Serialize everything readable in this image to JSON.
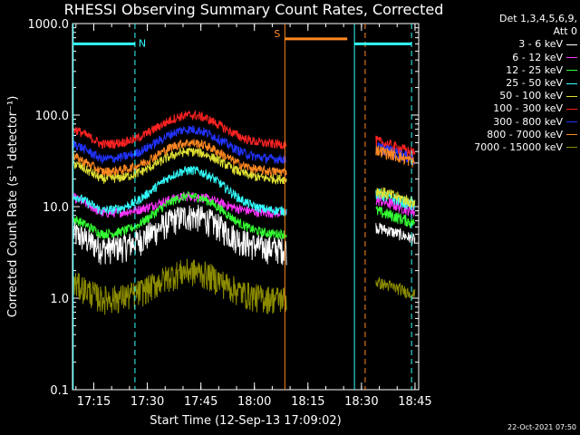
{
  "chart_data": {
    "type": "line",
    "title": "RHESSI Observing Summary Count Rates, Corrected",
    "xlabel": "Start Time (12-Sep-13 17:09:02)",
    "ylabel": "Corrected Count Rate (s⁻¹ detector⁻¹)",
    "yscale": "log",
    "ylim": [
      0.1,
      1000.0
    ],
    "xlim_minutes": [
      0,
      97
    ],
    "x_tick_labels": [
      "17:15",
      "17:30",
      "17:45",
      "18:00",
      "18:15",
      "18:30",
      "18:45"
    ],
    "y_tick_labels": [
      "0.1",
      "1.0",
      "10.0",
      "100.0",
      "1000.0"
    ],
    "legend_header": [
      "Det 1,3,4,5,6,9,",
      "Att 0"
    ],
    "series": [
      {
        "name": "3 - 6 keV",
        "color": "#ffffff",
        "peak": 8,
        "base": 3.5,
        "late": 6
      },
      {
        "name": "6 - 12 keV",
        "color": "#ff33ff",
        "peak": 13,
        "base": 8.5,
        "late": 12
      },
      {
        "name": "12 - 25 keV",
        "color": "#33ff33",
        "peak": 13,
        "base": 5.0,
        "late": 9
      },
      {
        "name": "25 - 50 keV",
        "color": "#33ffff",
        "peak": 25,
        "base": 9.0,
        "late": 14
      },
      {
        "name": "50 - 100 keV",
        "color": "#e0e033",
        "peak": 40,
        "base": 20,
        "late": 15
      },
      {
        "name": "100 - 300 keV",
        "color": "#ff2222",
        "peak": 100,
        "base": 48,
        "late": 52
      },
      {
        "name": "300 - 800 keV",
        "color": "#2233ff",
        "peak": 70,
        "base": 33,
        "late": 45
      },
      {
        "name": "800 - 7000 keV",
        "color": "#ff8822",
        "peak": 50,
        "base": 24,
        "late": 42
      },
      {
        "name": "7000 - 15000 keV",
        "color": "#8b8b00",
        "peak": 2,
        "base": 1,
        "late": 1.5
      }
    ],
    "annotations": [
      {
        "label": "N",
        "color": "#33ffff",
        "x_start": 0,
        "x_end": 17.5,
        "y": 600
      },
      {
        "label": "S",
        "color": "#ff8822",
        "x_start": 59.5,
        "x_end": 77,
        "y": 680
      },
      {
        "label": "",
        "color": "#33ffff",
        "x_start": 79,
        "x_end": 95,
        "y": 600
      }
    ],
    "vertical_markers": [
      {
        "x": 0.2,
        "color": "#33ffff",
        "style": "solid"
      },
      {
        "x": 17.5,
        "color": "#33ffff",
        "style": "dashed"
      },
      {
        "x": 59.5,
        "color": "#ff8822",
        "style": "solid"
      },
      {
        "x": 79,
        "color": "#33ffff",
        "style": "solid"
      },
      {
        "x": 82,
        "color": "#ff8822",
        "style": "dashed"
      },
      {
        "x": 95,
        "color": "#33ffff",
        "style": "dashed"
      }
    ],
    "gap": [
      60,
      85
    ],
    "grid": false,
    "legend_position": "right"
  },
  "footer_date": "22-Oct-2021 07:50"
}
